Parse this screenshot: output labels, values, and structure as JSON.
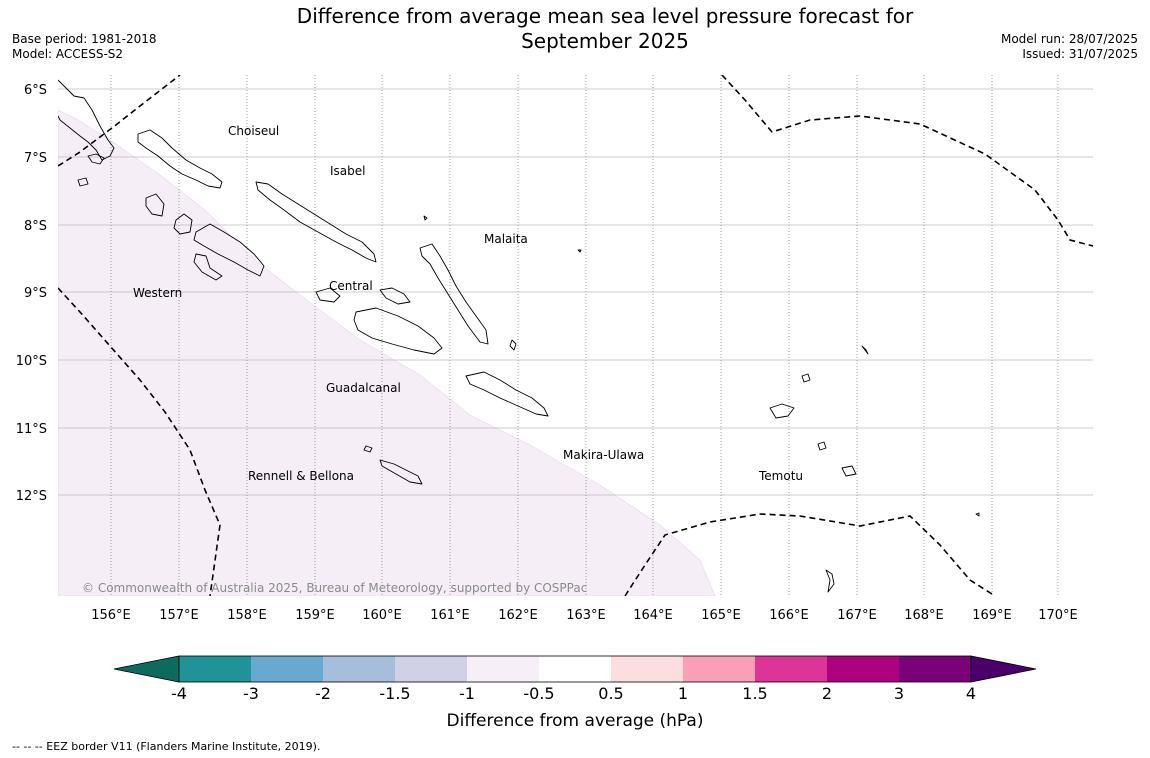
{
  "title": {
    "line1": "Difference from average mean sea level pressure forecast for",
    "line2": "September 2025"
  },
  "meta_left": {
    "base_period": "Base period: 1981-2018",
    "model": "Model: ACCESS-S2"
  },
  "meta_right": {
    "model_run": "Model run: 28/07/2025",
    "issued": "Issued: 31/07/2025"
  },
  "map": {
    "lat_labels": [
      "6°S",
      "7°S",
      "8°S",
      "9°S",
      "10°S",
      "11°S",
      "12°S"
    ],
    "lon_labels": [
      "156°E",
      "157°E",
      "158°E",
      "159°E",
      "160°E",
      "161°E",
      "162°E",
      "163°E",
      "164°E",
      "165°E",
      "166°E",
      "167°E",
      "168°E",
      "169°E",
      "170°E"
    ],
    "province_labels": [
      "Choiseul",
      "Isabel",
      "Malaita",
      "Western",
      "Central",
      "Guadalcanal",
      "Makira-Ulawa",
      "Rennell & Bellona",
      "Temotu"
    ],
    "copyright": "© Commonwealth of Australia 2025, Bureau of Meteorology, supported by COSPPac",
    "land_outline_color": "#000000",
    "anomaly_fill_color": "#f5eef7",
    "eez_line_color": "#000000"
  },
  "colorbar": {
    "tick_labels": [
      "-4",
      "-3",
      "-2",
      "-1.5",
      "-1",
      "-0.5",
      "0.5",
      "1",
      "1.5",
      "2",
      "3",
      "4"
    ],
    "colors": [
      "#0d6b5e",
      "#1f9398",
      "#67a9cf",
      "#a6bddb",
      "#d0d1e6",
      "#f6eff7",
      "#ffffff",
      "#fddede",
      "#fa9fb5",
      "#dd3497",
      "#ae017e",
      "#7a0177",
      "#49006a"
    ],
    "label": "Difference from average (hPa)"
  },
  "footer": "--  --  -- EEZ border V11 (Flanders Marine Institute, 2019)."
}
